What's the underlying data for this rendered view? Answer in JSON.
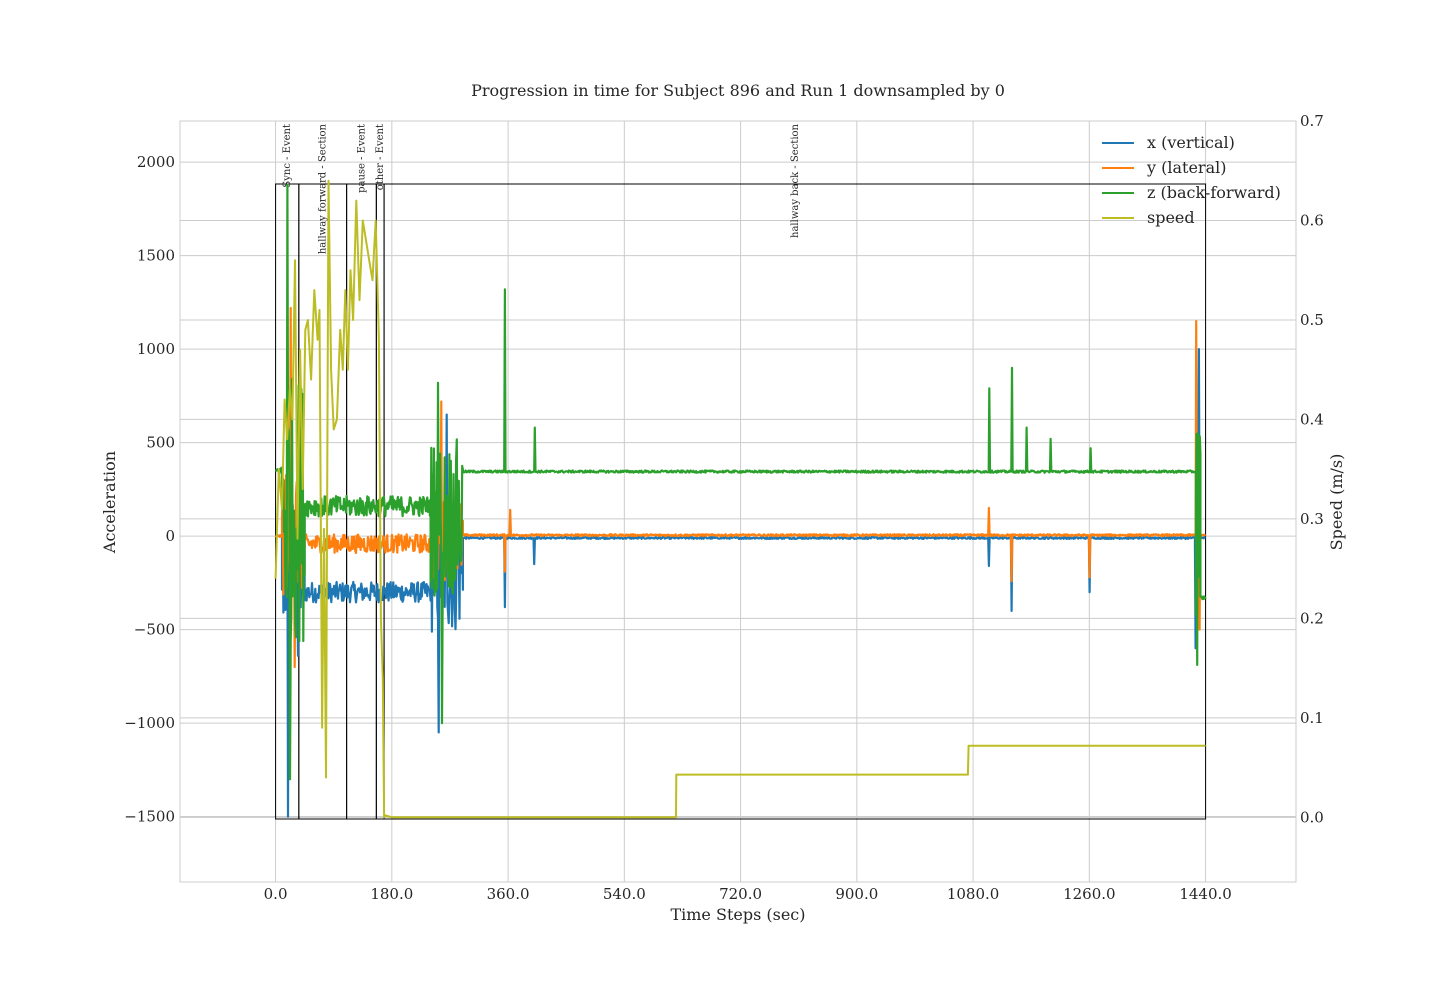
{
  "chart_data": {
    "type": "line",
    "title": "Progression in time for Subject 896 and Run 1 downsampled by 0",
    "xlabel": "Time Steps (sec)",
    "ylabel": "Acceleration",
    "y2label": "Speed (m/s)",
    "xlim": [
      -148,
      1580
    ],
    "ylim": [
      -1850,
      2220
    ],
    "y2lim": [
      -0.065,
      0.7
    ],
    "xticks": [
      0,
      180,
      360,
      540,
      720,
      900,
      1080,
      1260,
      1440
    ],
    "xtick_labels": [
      "0.0",
      "180.0",
      "360.0",
      "540.0",
      "720.0",
      "900.0",
      "1080.0",
      "1260.0",
      "1440.0"
    ],
    "yticks": [
      -1500,
      -1000,
      -500,
      0,
      500,
      1000,
      1500,
      2000
    ],
    "ytick_labels": [
      "−1500",
      "−1000",
      "−500",
      "0",
      "500",
      "1000",
      "1500",
      "2000"
    ],
    "y2ticks": [
      0.0,
      0.1,
      0.2,
      0.3,
      0.4,
      0.5,
      0.6,
      0.7
    ],
    "y2tick_labels": [
      "0.0",
      "0.1",
      "0.2",
      "0.3",
      "0.4",
      "0.5",
      "0.6",
      "0.7"
    ],
    "grid": true,
    "legend_position": "top-right",
    "series": [
      {
        "name": "x (vertical)",
        "color": "#1f77b4",
        "axis": "left",
        "segments": [
          {
            "x0": 0,
            "x1": 10,
            "center": 0,
            "amp": 5
          },
          {
            "x0": 10,
            "x1": 45,
            "center": -150,
            "amp": 420
          },
          {
            "x0": 45,
            "x1": 240,
            "center": -300,
            "amp": 55
          },
          {
            "x0": 240,
            "x1": 290,
            "center": -150,
            "amp": 380
          },
          {
            "x0": 290,
            "x1": 1440,
            "center": -10,
            "amp": 5
          }
        ],
        "spikes": [
          [
            19,
            -1500
          ],
          [
            35,
            -640
          ],
          [
            253,
            -1050
          ],
          [
            265,
            650
          ],
          [
            355,
            -380
          ],
          [
            400,
            -150
          ],
          [
            1105,
            -160
          ],
          [
            1140,
            -400
          ],
          [
            1260,
            -300
          ],
          [
            1425,
            -600
          ],
          [
            1430,
            1000
          ]
        ]
      },
      {
        "name": "y (lateral)",
        "color": "#ff7f0e",
        "axis": "left",
        "segments": [
          {
            "x0": 0,
            "x1": 10,
            "center": 0,
            "amp": 5
          },
          {
            "x0": 10,
            "x1": 45,
            "center": 50,
            "amp": 380
          },
          {
            "x0": 45,
            "x1": 240,
            "center": -40,
            "amp": 50
          },
          {
            "x0": 240,
            "x1": 290,
            "center": -20,
            "amp": 220
          },
          {
            "x0": 290,
            "x1": 1440,
            "center": 5,
            "amp": 5
          }
        ],
        "spikes": [
          [
            23,
            1220
          ],
          [
            30,
            -700
          ],
          [
            257,
            720
          ],
          [
            355,
            -190
          ],
          [
            363,
            140
          ],
          [
            1105,
            150
          ],
          [
            1140,
            -240
          ],
          [
            1260,
            -220
          ],
          [
            1426,
            1150
          ],
          [
            1431,
            -500
          ]
        ]
      },
      {
        "name": "z (back-forward)",
        "color": "#2ca02c",
        "axis": "left",
        "segments": [
          {
            "x0": 0,
            "x1": 10,
            "center": 350,
            "amp": 20
          },
          {
            "x0": 10,
            "x1": 45,
            "center": 150,
            "amp": 720
          },
          {
            "x0": 45,
            "x1": 240,
            "center": 160,
            "amp": 55
          },
          {
            "x0": 240,
            "x1": 290,
            "center": 100,
            "amp": 420
          },
          {
            "x0": 290,
            "x1": 1425,
            "center": 345,
            "amp": 6
          },
          {
            "x0": 1425,
            "x1": 1432,
            "center": 0,
            "amp": 700
          },
          {
            "x0": 1432,
            "x1": 1440,
            "center": -330,
            "amp": 10
          }
        ],
        "spikes": [
          [
            18,
            1880
          ],
          [
            22,
            -1300
          ],
          [
            251,
            820
          ],
          [
            258,
            -1000
          ],
          [
            355,
            1320
          ],
          [
            401,
            580
          ],
          [
            1105,
            790
          ],
          [
            1140,
            900
          ],
          [
            1163,
            580
          ],
          [
            1200,
            520
          ],
          [
            1262,
            470
          ],
          [
            1428,
            -990
          ],
          [
            1428,
            550
          ]
        ]
      },
      {
        "name": "speed",
        "color": "#bcbd22",
        "axis": "right",
        "x": [
          0,
          5,
          10,
          14,
          18,
          22,
          26,
          30,
          34,
          38,
          42,
          46,
          50,
          55,
          60,
          65,
          68,
          72,
          75,
          78,
          82,
          86,
          90,
          95,
          100,
          104,
          108,
          112,
          116,
          120,
          125,
          130,
          135,
          140,
          145,
          150,
          155,
          160,
          163,
          166,
          168,
          170,
          175,
          180,
          300,
          620,
          620.5,
          1072,
          1073,
          1440
        ],
        "y": [
          0.24,
          0.35,
          0.31,
          0.42,
          0.38,
          0.43,
          0.4,
          0.56,
          0.28,
          0.47,
          0.33,
          0.49,
          0.5,
          0.44,
          0.53,
          0.48,
          0.51,
          0.09,
          0.29,
          0.04,
          0.64,
          0.45,
          0.39,
          0.4,
          0.49,
          0.45,
          0.53,
          0.45,
          0.55,
          0.5,
          0.62,
          0.52,
          0.6,
          0.58,
          0.56,
          0.54,
          0.6,
          0.48,
          0.2,
          0.14,
          0.0,
          0.002,
          0.001,
          0.0,
          0.0,
          0.0,
          0.043,
          0.043,
          0.072,
          0.072
        ]
      }
    ],
    "events": [
      {
        "label": "Sync - Event",
        "x0": 0,
        "x1": 36
      },
      {
        "label": "hallway forward - Section",
        "x0": 36,
        "x1": 110
      },
      {
        "label": "pause - Event",
        "x0": 110,
        "x1": 156
      },
      {
        "label": "other - Event",
        "x0": 156,
        "x1": 168
      },
      {
        "label": "hallway back - Section",
        "x0": 168,
        "x1": 1440
      }
    ]
  }
}
